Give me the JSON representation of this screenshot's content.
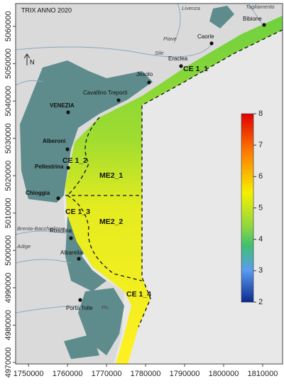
{
  "title": "TRIX ANNO 2020",
  "north": "N",
  "x_axis": {
    "lim": [
      1746700,
      1815100
    ],
    "ticks": [
      {
        "value": 1750000,
        "label": "1750000"
      },
      {
        "value": 1760000,
        "label": "1760000"
      },
      {
        "value": 1770000,
        "label": "1770000"
      },
      {
        "value": 1780000,
        "label": "1780000"
      },
      {
        "value": 1790000,
        "label": "1790000"
      },
      {
        "value": 1800000,
        "label": "1800000"
      },
      {
        "value": 1810000,
        "label": "1810000"
      }
    ]
  },
  "y_axis": {
    "lim": [
      4969600,
      5066100
    ],
    "ticks": [
      {
        "value": 4970000,
        "label": "4970000"
      },
      {
        "value": 4980000,
        "label": "4980000"
      },
      {
        "value": 4990000,
        "label": "4990000"
      },
      {
        "value": 5000000,
        "label": "5000000"
      },
      {
        "value": 5010000,
        "label": "5010000"
      },
      {
        "value": 5020000,
        "label": "5020000"
      },
      {
        "value": 5030000,
        "label": "5030000"
      },
      {
        "value": 5040000,
        "label": "5040000"
      },
      {
        "value": 5050000,
        "label": "5050000"
      },
      {
        "value": 5060000,
        "label": "5060000"
      }
    ]
  },
  "colorbar": {
    "lim": [
      2,
      8
    ],
    "ticks": [
      2,
      3,
      4,
      5,
      6,
      7,
      8
    ]
  },
  "places": [
    "Bibione",
    "Caorle",
    "Eraclea",
    "Jesolo",
    "Cavallino Treporti",
    "VENEZIA",
    "Alberoni",
    "Pellestrina",
    "Chioggia",
    "Rosolina",
    "Albarella",
    "Porto Tolle"
  ],
  "rivers": [
    "Livenza",
    "Tagliamento",
    "Piave",
    "Sile",
    "Brenta-Bacchiglione",
    "Adige",
    "Po"
  ],
  "zones": [
    "CE 1_1",
    "CE 1_2",
    "CE 1_3",
    "CE 1_4",
    "ME2_1",
    "ME2_2"
  ]
}
